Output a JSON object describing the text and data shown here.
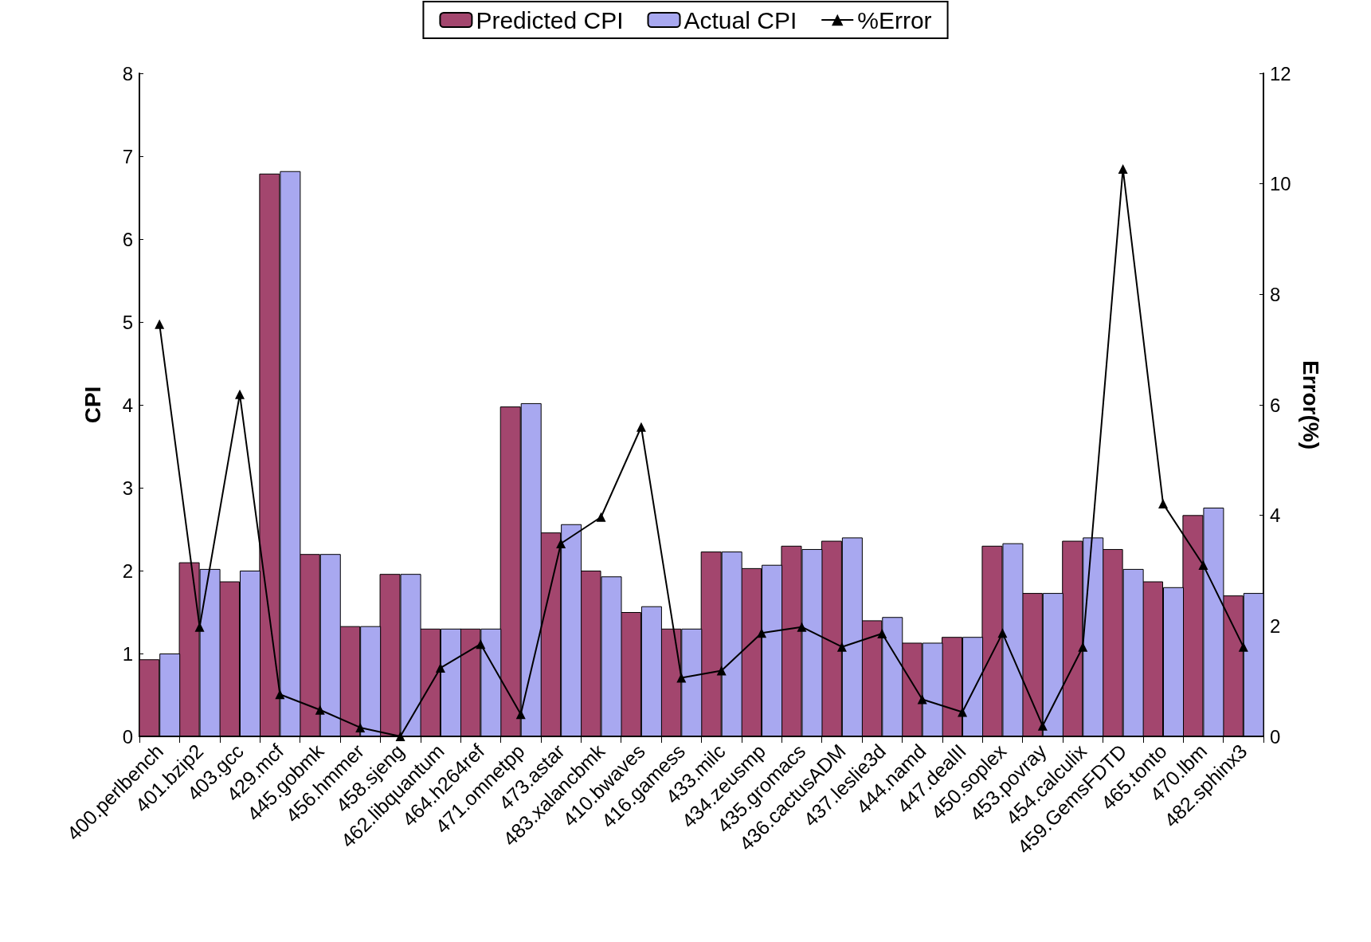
{
  "chart_data": {
    "type": "bar",
    "ylabel": "CPI",
    "y2label": "Error(%)",
    "categories": [
      "400.perlbench",
      "401.bzip2",
      "403.gcc",
      "429.mcf",
      "445.gobmk",
      "456.hmmer",
      "458.sjeng",
      "462.libquantum",
      "464.h264ref",
      "471.omnetpp",
      "473.astar",
      "483.xalancbmk",
      "410.bwaves",
      "416.gamess",
      "433.milc",
      "434.zeusmp",
      "435.gromacs",
      "436.cactusADM",
      "437.leslie3d",
      "444.namd",
      "447.dealII",
      "450.soplex",
      "453.povray",
      "454.calculix",
      "459.GemsFDTD",
      "465.tonto",
      "470.lbm",
      "482.sphinx3"
    ],
    "series": [
      {
        "name": "Predicted CPI",
        "color": "#a3466e",
        "values": [
          0.93,
          2.1,
          1.87,
          6.79,
          2.2,
          1.33,
          1.96,
          1.3,
          1.3,
          3.98,
          2.46,
          2.0,
          1.5,
          1.3,
          2.23,
          2.03,
          2.3,
          2.36,
          1.4,
          1.13,
          1.2,
          2.3,
          1.73,
          2.36,
          2.26,
          1.87,
          2.67,
          1.7
        ]
      },
      {
        "name": "Actual CPI",
        "color": "#a8a8f0",
        "values": [
          1.0,
          2.02,
          2.0,
          6.82,
          2.2,
          1.33,
          1.96,
          1.3,
          1.3,
          4.02,
          2.56,
          1.93,
          1.57,
          1.3,
          2.23,
          2.07,
          2.26,
          2.4,
          1.44,
          1.13,
          1.2,
          2.33,
          1.73,
          2.4,
          2.02,
          1.8,
          2.76,
          1.73
        ]
      },
      {
        "name": "%Error",
        "type": "line",
        "axis": "y2",
        "color": "#000000",
        "marker": "triangle",
        "values": [
          7.46,
          1.98,
          6.19,
          0.76,
          0.48,
          0.16,
          0.0,
          1.24,
          1.67,
          0.4,
          3.49,
          3.97,
          5.6,
          1.06,
          1.19,
          1.87,
          1.98,
          1.62,
          1.86,
          0.67,
          0.44,
          1.87,
          0.19,
          1.62,
          10.27,
          4.21,
          3.1,
          1.62
        ]
      }
    ],
    "ylim": [
      0,
      8
    ],
    "yticks": [
      0,
      1,
      2,
      3,
      4,
      5,
      6,
      7,
      8
    ],
    "y2lim": [
      0,
      12
    ],
    "y2ticks": [
      0,
      2,
      4,
      6,
      8,
      10,
      12
    ],
    "legend": "top",
    "grid": false
  }
}
